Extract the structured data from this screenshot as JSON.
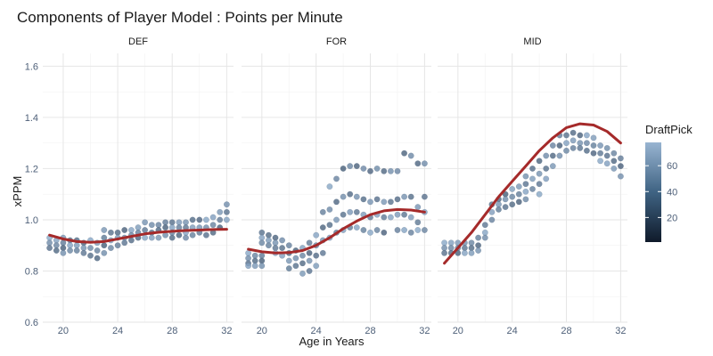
{
  "chart_data": {
    "type": "scatter",
    "title": "Components of Player Model : Points per Minute",
    "xlabel": "Age in Years",
    "ylabel": "xPPM",
    "xlim": [
      18.5,
      32.5
    ],
    "ylim": [
      0.6,
      1.65
    ],
    "x_ticks": [
      "20",
      "24",
      "28",
      "32"
    ],
    "y_ticks": [
      "0.6",
      "0.8",
      "1.0",
      "1.2",
      "1.4",
      "1.6"
    ],
    "grid": true,
    "colors": {
      "trend": "#a52a2a",
      "point_light": "#8ba9c8",
      "point_dark": "#1e2f45"
    },
    "legend": {
      "title": "DraftPick",
      "position": "right",
      "ticks": [
        "20",
        "40",
        "60"
      ],
      "range": [
        1,
        78
      ],
      "colors": [
        "#0f1a2a",
        "#3f6383",
        "#98b4d1"
      ]
    },
    "facets": [
      {
        "name": "DEF",
        "points": [
          [
            19,
            0.93
          ],
          [
            19,
            0.91
          ],
          [
            19,
            0.89
          ],
          [
            19.5,
            0.92
          ],
          [
            19.5,
            0.9
          ],
          [
            19.5,
            0.88
          ],
          [
            20,
            0.93
          ],
          [
            20,
            0.91
          ],
          [
            20,
            0.89
          ],
          [
            20,
            0.87
          ],
          [
            20.5,
            0.92
          ],
          [
            20.5,
            0.9
          ],
          [
            20.5,
            0.88
          ],
          [
            21,
            0.92
          ],
          [
            21,
            0.9
          ],
          [
            21,
            0.88
          ],
          [
            21.5,
            0.91
          ],
          [
            21.5,
            0.89
          ],
          [
            21.5,
            0.87
          ],
          [
            22,
            0.92
          ],
          [
            22,
            0.89
          ],
          [
            22,
            0.86
          ],
          [
            22.5,
            0.91
          ],
          [
            22.5,
            0.88
          ],
          [
            22.5,
            0.85
          ],
          [
            23,
            0.96
          ],
          [
            23,
            0.93
          ],
          [
            23,
            0.9
          ],
          [
            23,
            0.87
          ],
          [
            23.5,
            0.95
          ],
          [
            23.5,
            0.92
          ],
          [
            23.5,
            0.89
          ],
          [
            24,
            0.95
          ],
          [
            24,
            0.93
          ],
          [
            24,
            0.9
          ],
          [
            24.5,
            0.96
          ],
          [
            24.5,
            0.93
          ],
          [
            24.5,
            0.91
          ],
          [
            25,
            0.96
          ],
          [
            25,
            0.94
          ],
          [
            25,
            0.92
          ],
          [
            25.5,
            0.97
          ],
          [
            25.5,
            0.95
          ],
          [
            25.5,
            0.93
          ],
          [
            26,
            0.99
          ],
          [
            26,
            0.96
          ],
          [
            26,
            0.93
          ],
          [
            26.5,
            0.98
          ],
          [
            26.5,
            0.95
          ],
          [
            26.5,
            0.93
          ],
          [
            27,
            0.98
          ],
          [
            27,
            0.96
          ],
          [
            27,
            0.93
          ],
          [
            27.5,
            0.99
          ],
          [
            27.5,
            0.97
          ],
          [
            27.5,
            0.94
          ],
          [
            28,
            0.99
          ],
          [
            28,
            0.97
          ],
          [
            28,
            0.95
          ],
          [
            28,
            0.93
          ],
          [
            28.5,
            0.99
          ],
          [
            28.5,
            0.97
          ],
          [
            28.5,
            0.94
          ],
          [
            29,
            0.99
          ],
          [
            29,
            0.97
          ],
          [
            29,
            0.95
          ],
          [
            29,
            0.93
          ],
          [
            29.5,
            1.0
          ],
          [
            29.5,
            0.97
          ],
          [
            29.5,
            0.94
          ],
          [
            30,
            1.0
          ],
          [
            30,
            0.97
          ],
          [
            30,
            0.95
          ],
          [
            30.5,
            1.0
          ],
          [
            30.5,
            0.97
          ],
          [
            30.5,
            0.94
          ],
          [
            31,
            1.01
          ],
          [
            31,
            0.98
          ],
          [
            31,
            0.95
          ],
          [
            31.5,
            1.03
          ],
          [
            31.5,
            1.0
          ],
          [
            31.5,
            0.97
          ],
          [
            32,
            1.06
          ],
          [
            32,
            1.03
          ],
          [
            32,
            1.0
          ]
        ],
        "trend": {
          "x": [
            19,
            20,
            21,
            22,
            23,
            24,
            25,
            26,
            27,
            28,
            29,
            30,
            31,
            32
          ],
          "y": [
            0.94,
            0.925,
            0.915,
            0.912,
            0.915,
            0.925,
            0.935,
            0.945,
            0.951,
            0.955,
            0.958,
            0.96,
            0.962,
            0.963
          ]
        }
      },
      {
        "name": "FOR",
        "points": [
          [
            19,
            0.87
          ],
          [
            19,
            0.85
          ],
          [
            19,
            0.83
          ],
          [
            19,
            0.82
          ],
          [
            19.5,
            0.86
          ],
          [
            19.5,
            0.84
          ],
          [
            19.5,
            0.82
          ],
          [
            20,
            0.86
          ],
          [
            20,
            0.84
          ],
          [
            20,
            0.82
          ],
          [
            20,
            0.95
          ],
          [
            20,
            0.93
          ],
          [
            20,
            0.91
          ],
          [
            20.5,
            0.94
          ],
          [
            20.5,
            0.92
          ],
          [
            20.5,
            0.9
          ],
          [
            21,
            0.93
          ],
          [
            21,
            0.91
          ],
          [
            21,
            0.89
          ],
          [
            21,
            0.87
          ],
          [
            21.5,
            0.92
          ],
          [
            21.5,
            0.89
          ],
          [
            21.5,
            0.86
          ],
          [
            22,
            0.9
          ],
          [
            22,
            0.87
          ],
          [
            22,
            0.84
          ],
          [
            22,
            0.81
          ],
          [
            22.5,
            0.88
          ],
          [
            22.5,
            0.85
          ],
          [
            22.5,
            0.82
          ],
          [
            23,
            0.89
          ],
          [
            23,
            0.86
          ],
          [
            23,
            0.83
          ],
          [
            23,
            0.79
          ],
          [
            23.5,
            0.91
          ],
          [
            23.5,
            0.87
          ],
          [
            23.5,
            0.84
          ],
          [
            23.5,
            0.8
          ],
          [
            24,
            0.94
          ],
          [
            24,
            0.9
          ],
          [
            24,
            0.86
          ],
          [
            24,
            0.82
          ],
          [
            24.5,
            1.03
          ],
          [
            24.5,
            0.97
          ],
          [
            24.5,
            0.92
          ],
          [
            24.5,
            0.87
          ],
          [
            25,
            1.13
          ],
          [
            25,
            1.04
          ],
          [
            25,
            0.98
          ],
          [
            25,
            0.93
          ],
          [
            25.5,
            1.16
          ],
          [
            25.5,
            1.07
          ],
          [
            25.5,
            1.0
          ],
          [
            25.5,
            0.95
          ],
          [
            26,
            1.2
          ],
          [
            26,
            1.09
          ],
          [
            26,
            1.02
          ],
          [
            26,
            0.96
          ],
          [
            26.5,
            1.21
          ],
          [
            26.5,
            1.1
          ],
          [
            26.5,
            1.03
          ],
          [
            26.5,
            0.97
          ],
          [
            27,
            1.21
          ],
          [
            27,
            1.09
          ],
          [
            27,
            1.03
          ],
          [
            27,
            0.97
          ],
          [
            27.5,
            1.2
          ],
          [
            27.5,
            1.08
          ],
          [
            27.5,
            1.02
          ],
          [
            27.5,
            0.96
          ],
          [
            28,
            1.19
          ],
          [
            28,
            1.07
          ],
          [
            28,
            1.01
          ],
          [
            28,
            0.95
          ],
          [
            28.5,
            1.2
          ],
          [
            28.5,
            1.08
          ],
          [
            28.5,
            1.02
          ],
          [
            28.5,
            0.96
          ],
          [
            29,
            1.19
          ],
          [
            29,
            1.07
          ],
          [
            29,
            1.01
          ],
          [
            29,
            0.95
          ],
          [
            29.5,
            1.19
          ],
          [
            29.5,
            1.07
          ],
          [
            29.5,
            1.01
          ],
          [
            30,
            1.19
          ],
          [
            30,
            1.08
          ],
          [
            30,
            1.02
          ],
          [
            30,
            0.96
          ],
          [
            30.5,
            1.26
          ],
          [
            30.5,
            1.09
          ],
          [
            30.5,
            1.02
          ],
          [
            30.5,
            0.96
          ],
          [
            31,
            1.25
          ],
          [
            31,
            1.09
          ],
          [
            31,
            1.01
          ],
          [
            31,
            0.95
          ],
          [
            31.5,
            1.22
          ],
          [
            31.5,
            1.05
          ],
          [
            31.5,
            0.99
          ],
          [
            31.5,
            0.96
          ],
          [
            32,
            1.22
          ],
          [
            32,
            1.09
          ],
          [
            32,
            1.03
          ],
          [
            32,
            0.96
          ]
        ],
        "trend": {
          "x": [
            19,
            20,
            21,
            22,
            23,
            24,
            25,
            26,
            27,
            28,
            29,
            30,
            31,
            32
          ],
          "y": [
            0.885,
            0.875,
            0.87,
            0.872,
            0.88,
            0.9,
            0.93,
            0.965,
            0.995,
            1.02,
            1.035,
            1.04,
            1.038,
            1.03
          ]
        }
      },
      {
        "name": "MID",
        "points": [
          [
            19,
            0.91
          ],
          [
            19,
            0.89
          ],
          [
            19,
            0.87
          ],
          [
            19.5,
            0.91
          ],
          [
            19.5,
            0.89
          ],
          [
            19.5,
            0.87
          ],
          [
            20,
            0.91
          ],
          [
            20,
            0.89
          ],
          [
            20,
            0.87
          ],
          [
            20.5,
            0.91
          ],
          [
            20.5,
            0.89
          ],
          [
            20.5,
            0.87
          ],
          [
            21,
            0.91
          ],
          [
            21,
            0.89
          ],
          [
            21,
            0.87
          ],
          [
            21.5,
            0.93
          ],
          [
            21.5,
            0.9
          ],
          [
            21.5,
            0.88
          ],
          [
            22,
            0.98
          ],
          [
            22,
            0.95
          ],
          [
            22,
            0.93
          ],
          [
            22.5,
            1.06
          ],
          [
            22.5,
            1.03
          ],
          [
            22.5,
            1.0
          ],
          [
            23,
            1.08
          ],
          [
            23,
            1.06
          ],
          [
            23,
            1.04
          ],
          [
            23.5,
            1.1
          ],
          [
            23.5,
            1.08
          ],
          [
            23.5,
            1.05
          ],
          [
            24,
            1.12
          ],
          [
            24,
            1.09
          ],
          [
            24,
            1.06
          ],
          [
            24.5,
            1.13
          ],
          [
            24.5,
            1.1
          ],
          [
            24.5,
            1.07
          ],
          [
            25,
            1.17
          ],
          [
            25,
            1.14
          ],
          [
            25,
            1.11
          ],
          [
            25,
            1.08
          ],
          [
            25.5,
            1.2
          ],
          [
            25.5,
            1.16
          ],
          [
            25.5,
            1.12
          ],
          [
            26,
            1.23
          ],
          [
            26,
            1.18
          ],
          [
            26,
            1.14
          ],
          [
            26,
            1.1
          ],
          [
            26.5,
            1.25
          ],
          [
            26.5,
            1.2
          ],
          [
            26.5,
            1.16
          ],
          [
            27,
            1.29
          ],
          [
            27,
            1.25
          ],
          [
            27,
            1.21
          ],
          [
            27.5,
            1.33
          ],
          [
            27.5,
            1.29
          ],
          [
            27.5,
            1.25
          ],
          [
            28,
            1.33
          ],
          [
            28,
            1.3
          ],
          [
            28,
            1.27
          ],
          [
            28.5,
            1.34
          ],
          [
            28.5,
            1.31
          ],
          [
            28.5,
            1.28
          ],
          [
            29,
            1.33
          ],
          [
            29,
            1.3
          ],
          [
            29,
            1.28
          ],
          [
            29.5,
            1.33
          ],
          [
            29.5,
            1.3
          ],
          [
            29.5,
            1.27
          ],
          [
            30,
            1.32
          ],
          [
            30,
            1.29
          ],
          [
            30,
            1.26
          ],
          [
            30.5,
            1.29
          ],
          [
            30.5,
            1.26
          ],
          [
            30.5,
            1.23
          ],
          [
            31,
            1.28
          ],
          [
            31,
            1.25
          ],
          [
            31,
            1.22
          ],
          [
            31.5,
            1.26
          ],
          [
            31.5,
            1.23
          ],
          [
            31.5,
            1.2
          ],
          [
            32,
            1.24
          ],
          [
            32,
            1.21
          ],
          [
            32,
            1.17
          ]
        ],
        "trend": {
          "x": [
            19,
            20,
            21,
            22,
            23,
            24,
            25,
            26,
            27,
            28,
            29,
            30,
            31,
            32
          ],
          "y": [
            0.83,
            0.89,
            0.95,
            1.02,
            1.09,
            1.15,
            1.21,
            1.27,
            1.32,
            1.36,
            1.375,
            1.37,
            1.345,
            1.3
          ]
        }
      }
    ]
  }
}
